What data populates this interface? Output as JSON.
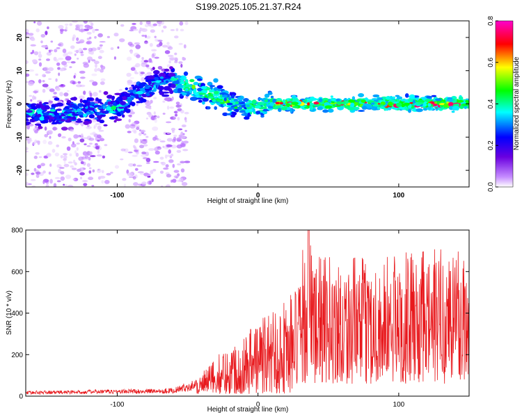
{
  "title": "S199.2025.105.21.37.R24",
  "chart_data": [
    {
      "type": "heatmap",
      "xlabel": "Height of straight line (km)",
      "ylabel": "Frequency (Hz)",
      "xlim": [
        -165,
        150
      ],
      "ylim": [
        -25,
        25
      ],
      "xticks": [
        -100,
        0,
        100
      ],
      "yticks": [
        -20,
        -10,
        0,
        10,
        20
      ],
      "colorbar": {
        "label": "Normalized spectral amplitude",
        "range": [
          0,
          0.8
        ],
        "ticks": [
          "0.0",
          "0.2",
          "0.4",
          "0.6",
          "0.8"
        ],
        "colormap": [
          "#ffffff",
          "#b366ff",
          "#6a00e0",
          "#0000ff",
          "#00ffff",
          "#00ff00",
          "#ffff00",
          "#ff0000",
          "#ff00cc"
        ]
      },
      "ridge": {
        "x": [
          -165,
          -140,
          -120,
          -100,
          -90,
          -80,
          -70,
          -60,
          -50,
          -40,
          -30,
          -20,
          -10,
          0,
          10,
          20,
          40,
          60,
          80,
          100,
          120,
          140,
          150
        ],
        "y": [
          -3,
          -3,
          -2,
          -1,
          2,
          5,
          7,
          7,
          6,
          4,
          2,
          0,
          -1,
          -1,
          0,
          0,
          0,
          0,
          0,
          0,
          0,
          0,
          0
        ]
      }
    },
    {
      "type": "line",
      "xlabel": "Height of straight line (km)",
      "ylabel": "SNR (10 * v/v)",
      "xlim": [
        -165,
        150
      ],
      "ylim": [
        0,
        800
      ],
      "xticks": [
        -100,
        0,
        100
      ],
      "yticks": [
        0,
        200,
        400,
        600,
        800
      ],
      "line_color": "#e8191d",
      "envelope": {
        "x": [
          -165,
          -80,
          -60,
          -50,
          -40,
          -30,
          -20,
          -10,
          0,
          10,
          20,
          30,
          35,
          40,
          60,
          80,
          100,
          120,
          140,
          150
        ],
        "y": [
          25,
          35,
          40,
          65,
          100,
          180,
          240,
          300,
          380,
          420,
          480,
          560,
          800,
          620,
          620,
          600,
          640,
          640,
          720,
          680
        ]
      }
    }
  ]
}
